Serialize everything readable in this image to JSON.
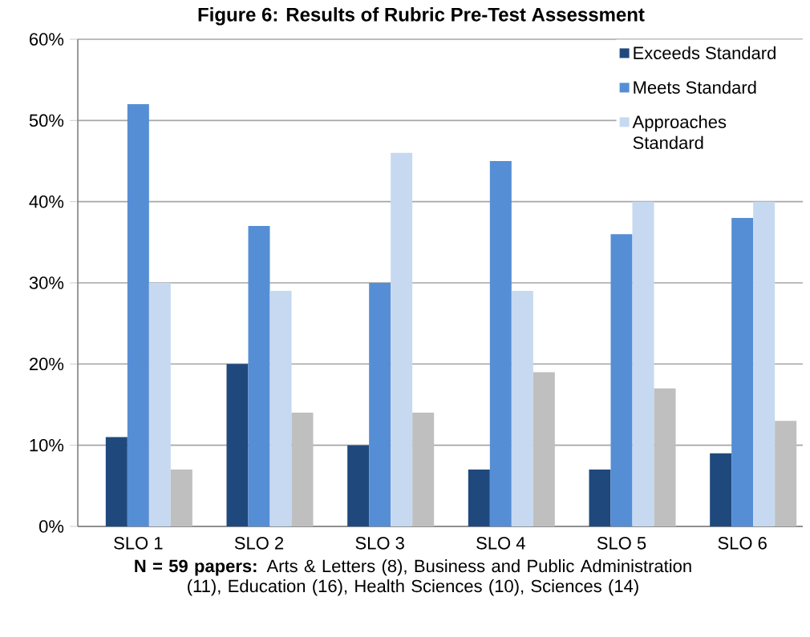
{
  "chart_data": {
    "type": "bar",
    "title": "Figure 6: Results of Rubric Pre-Test Assessment",
    "categories": [
      "SLO 1",
      "SLO 2",
      "SLO 3",
      "SLO 4",
      "SLO 5",
      "SLO 6"
    ],
    "series": [
      {
        "name": "Exceeds Standard",
        "color": "#1f497d",
        "values": [
          11,
          20,
          10,
          7,
          7,
          9
        ]
      },
      {
        "name": "Meets Standard",
        "color": "#558ed5",
        "values": [
          52,
          37,
          30,
          45,
          36,
          38
        ]
      },
      {
        "name": "Approaches Standard",
        "color": "#c6d9f1",
        "values": [
          30,
          29,
          46,
          29,
          40,
          40
        ]
      },
      {
        "color": "#bfbfbf",
        "values": [
          7,
          14,
          14,
          19,
          17,
          13
        ]
      }
    ],
    "ylim": [
      0,
      60
    ],
    "yticks": [
      {
        "value": 0,
        "label": "0%"
      },
      {
        "value": 10,
        "label": "10%"
      },
      {
        "value": 20,
        "label": "20%"
      },
      {
        "value": 30,
        "label": "30%"
      },
      {
        "value": 40,
        "label": "40%"
      },
      {
        "value": 50,
        "label": "50%"
      },
      {
        "value": 60,
        "label": "60%"
      }
    ],
    "grid": "y",
    "legend": "top right",
    "annotations": [
      "**N = 59 papers:** Arts & Letters (8), Business and Public Administration (11), Education (16), Health Sciences (10), Sciences (14)"
    ]
  }
}
